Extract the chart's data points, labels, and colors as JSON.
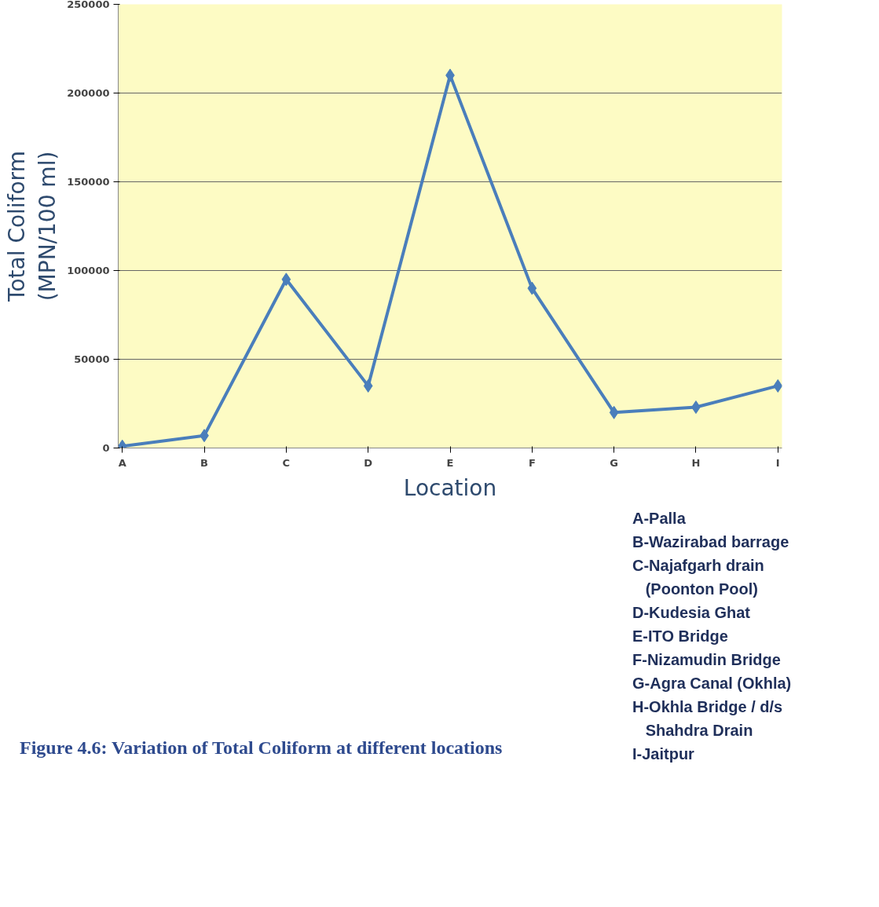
{
  "chart_data": {
    "type": "line",
    "categories": [
      "A",
      "B",
      "C",
      "D",
      "E",
      "F",
      "G",
      "H",
      "I"
    ],
    "series": [
      {
        "color": "#4a7ebb",
        "values": [
          1000,
          7000,
          95000,
          35000,
          210000,
          90000,
          20000,
          23000,
          35000
        ]
      }
    ],
    "xlabel": "Location",
    "ylabel": "Total Coliform\n(MPN/100 ml)",
    "ylim": [
      0,
      250000
    ],
    "yticks": [
      0,
      50000,
      100000,
      150000,
      200000,
      250000
    ],
    "grid": "y",
    "marker": "diamond",
    "line_style": "solid",
    "annotations": [
      "A-Palla",
      "B-Wazirabad barrage",
      "C-Najafgarh drain\n(Poonton Pool)",
      "D-Kudesia Ghat",
      "E-ITO Bridge",
      "F-Nizamudin Bridge",
      "G-Agra Canal (Okhla)",
      "H-Okhla Bridge / d/s\nShahdra Drain",
      "I-Jaitpur",
      "Figure 4.6: Variation of Total Coliform at different locations"
    ]
  }
}
